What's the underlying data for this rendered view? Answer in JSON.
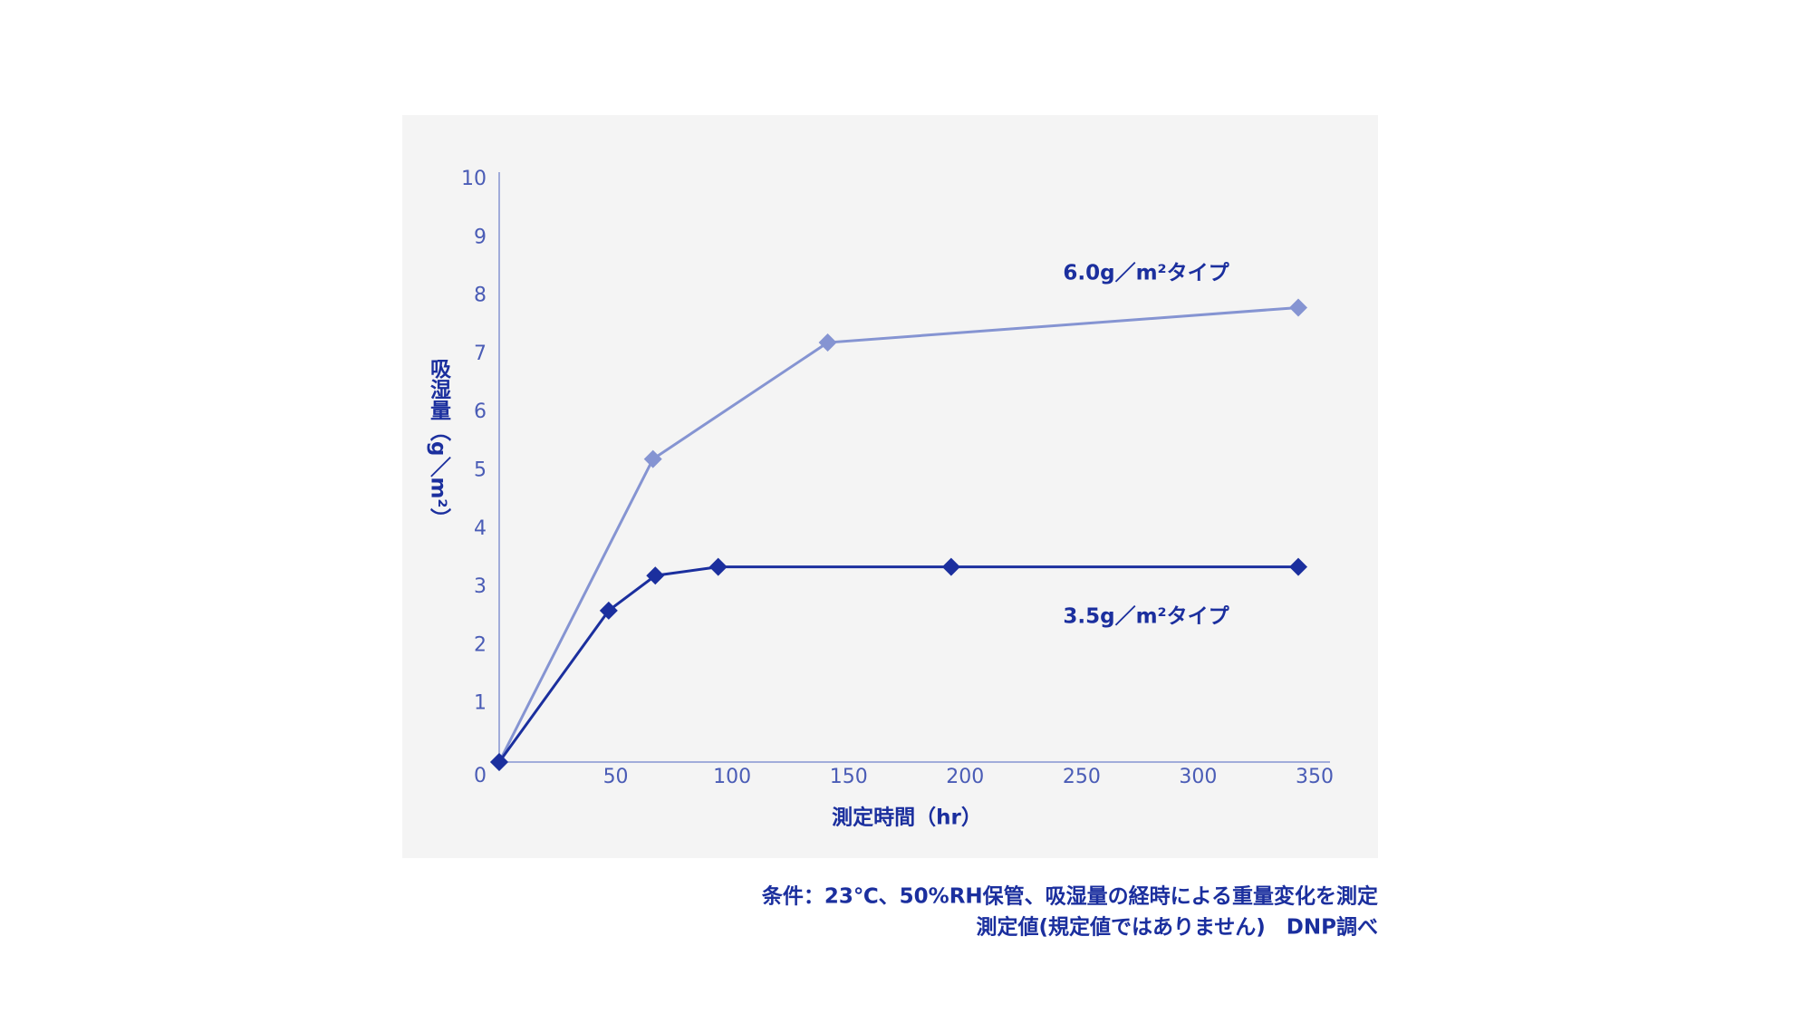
{
  "chart_data": {
    "type": "line",
    "xlabel": "測定時間（hr）",
    "ylabel": "吸湿量（g／m²）",
    "xlim": [
      0,
      350
    ],
    "xticks": [
      50,
      100,
      150,
      200,
      250,
      300,
      350
    ],
    "ylim": [
      0,
      10
    ],
    "yticks": [
      0,
      1,
      2,
      3,
      4,
      5,
      6,
      7,
      8,
      9,
      10
    ],
    "series": [
      {
        "name": "6.0g／m²タイプ",
        "color": "#8594d2",
        "x": [
          0,
          66,
          141,
          343
        ],
        "values": [
          0,
          5.2,
          7.2,
          7.8
        ]
      },
      {
        "name": "3.5g／m²タイプ",
        "color": "#1b2f9e",
        "x": [
          0,
          47,
          67,
          94,
          194,
          343
        ],
        "values": [
          0,
          2.6,
          3.2,
          3.35,
          3.35,
          3.35
        ]
      }
    ],
    "notes": [
      "条件：23℃、50%RH保管、吸湿量の経時による重量変化を測定",
      "測定値(規定値ではありません)　DNP調べ"
    ]
  }
}
